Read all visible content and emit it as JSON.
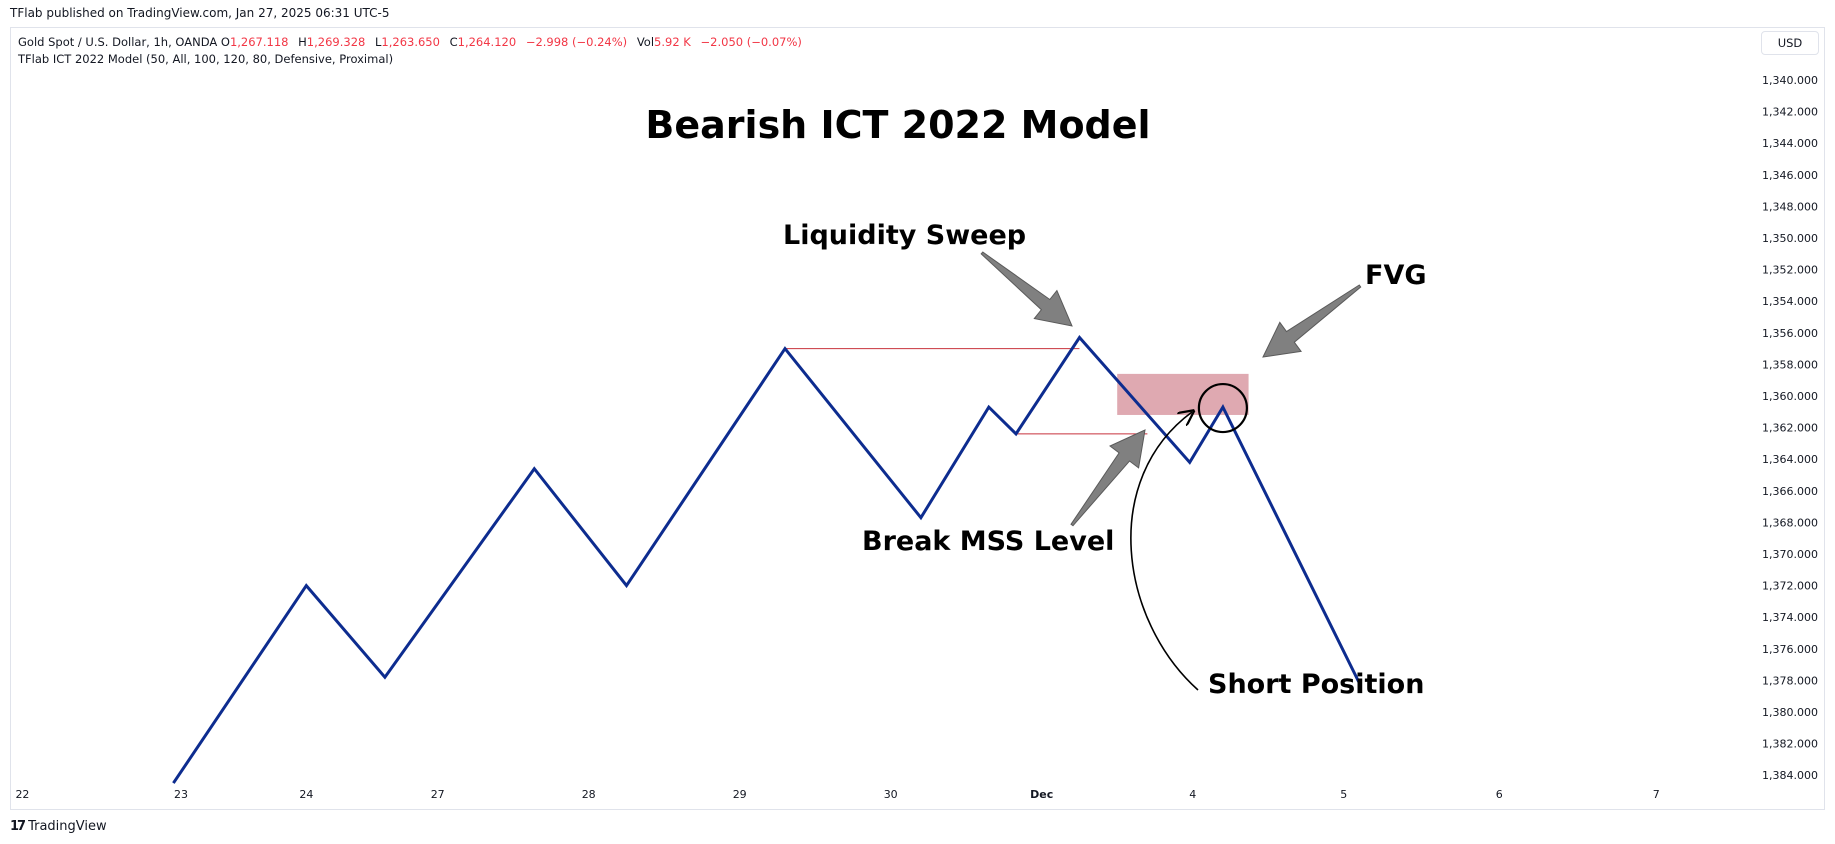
{
  "header": {
    "published": "TFlab published on TradingView.com, Jan 27, 2025 06:31 UTC-5"
  },
  "legend": {
    "symbol": "Gold Spot / U.S. Dollar, 1h, OANDA",
    "open_label": "O",
    "open": "1,267.118",
    "high_label": "H",
    "high": "1,269.328",
    "low_label": "L",
    "low": "1,263.650",
    "close_label": "C",
    "close": "1,264.120",
    "change": "−2.998 (−0.24%)",
    "vol_label": "Vol",
    "vol": "5.92 K",
    "vol_change": "−2.050 (−0.07%)",
    "indicator": "TFlab ICT 2022 Model (50, All, 100, 120, 80, Defensive, Proximal)"
  },
  "currency_button": "USD",
  "footer": {
    "brand": "TradingView",
    "logo_icon": "tradingview-logo-icon"
  },
  "colors": {
    "price_line": "#0d2c8f",
    "level_line": "#c8323c",
    "fvg_fill": "#dca0a8",
    "arrow_fill": "#808080",
    "legend_value": "#f23645"
  },
  "chart_data": {
    "type": "line",
    "title": "Bearish ICT 2022 Model",
    "y_axis": {
      "ticks": [
        "1,340.000",
        "1,342.000",
        "1,344.000",
        "1,346.000",
        "1,348.000",
        "1,350.000",
        "1,352.000",
        "1,354.000",
        "1,356.000",
        "1,358.000",
        "1,360.000",
        "1,362.000",
        "1,364.000",
        "1,366.000",
        "1,368.000",
        "1,370.000",
        "1,372.000",
        "1,374.000",
        "1,376.000",
        "1,378.000",
        "1,380.000",
        "1,382.000",
        "1,384.000"
      ],
      "inverted": true,
      "ylim": [
        1340,
        1384
      ]
    },
    "x_axis": {
      "ticks": [
        "22",
        "23",
        "24",
        "27",
        "28",
        "29",
        "30",
        "Dec",
        "4",
        "5",
        "6",
        "7"
      ],
      "positions": [
        -1.05,
        0,
        0.83,
        1.7,
        2.7,
        3.7,
        4.7,
        5.7,
        6.7,
        7.7,
        8.73,
        9.77
      ]
    },
    "series": [
      {
        "points": [
          [
            -0.05,
            1384.5
          ],
          [
            0.83,
            1372
          ],
          [
            1.35,
            1377.8
          ],
          [
            2.34,
            1364.6
          ],
          [
            2.95,
            1372
          ],
          [
            4.0,
            1357
          ],
          [
            4.9,
            1367.7
          ],
          [
            5.35,
            1360.7
          ],
          [
            5.53,
            1362.4
          ],
          [
            5.95,
            1356.3
          ],
          [
            6.68,
            1364.2
          ],
          [
            6.9,
            1360.7
          ],
          [
            7.8,
            1378.1
          ]
        ]
      }
    ],
    "levels": [
      {
        "name": "liquidity-level",
        "y": 1357,
        "x_from": 4.0,
        "x_to": 5.95
      },
      {
        "name": "mss-level",
        "y": 1362.4,
        "x_from": 5.53,
        "x_to": 6.4
      }
    ],
    "fvg_zone": {
      "x_from": 6.2,
      "x_to": 7.07,
      "y_top": 1358.6,
      "y_bottom": 1361.2
    },
    "annotations": [
      {
        "name": "liquidity-sweep",
        "text": "Liquidity Sweep"
      },
      {
        "name": "fvg",
        "text": "FVG"
      },
      {
        "name": "break-mss",
        "text": "Break MSS Level"
      },
      {
        "name": "short-position",
        "text": "Short Position"
      }
    ]
  }
}
